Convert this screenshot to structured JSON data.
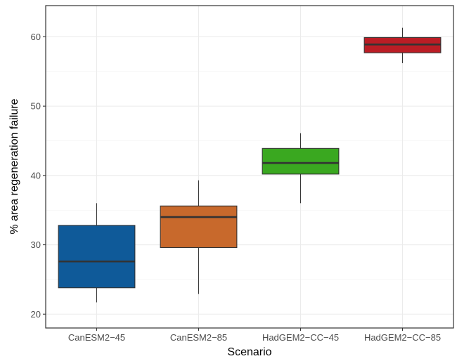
{
  "chart_data": {
    "type": "box",
    "title": "",
    "xlabel": "Scenario",
    "ylabel": "% area regeneration failure",
    "ylim": [
      18,
      64.5
    ],
    "yticks": [
      20,
      30,
      40,
      50,
      60
    ],
    "grid": true,
    "categories": [
      "CanESM2−45",
      "CanESM2−85",
      "HadGEM2−CC−45",
      "HadGEM2−CC−85"
    ],
    "boxes": [
      {
        "category": "CanESM2−45",
        "whisker_low": 21.7,
        "q1": 23.8,
        "median": 27.6,
        "q3": 32.8,
        "whisker_high": 36.0,
        "color": "#0f5a99"
      },
      {
        "category": "CanESM2−85",
        "whisker_low": 22.9,
        "q1": 29.6,
        "median": 34.0,
        "q3": 35.6,
        "whisker_high": 39.3,
        "color": "#c8692c"
      },
      {
        "category": "HadGEM2−CC−45",
        "whisker_low": 36.0,
        "q1": 40.2,
        "median": 41.8,
        "q3": 43.9,
        "whisker_high": 46.1,
        "color": "#3aa820"
      },
      {
        "category": "HadGEM2−CC−85",
        "whisker_low": 56.2,
        "q1": 57.7,
        "median": 58.9,
        "q3": 59.9,
        "whisker_high": 61.3,
        "color": "#bb1d25"
      }
    ]
  }
}
